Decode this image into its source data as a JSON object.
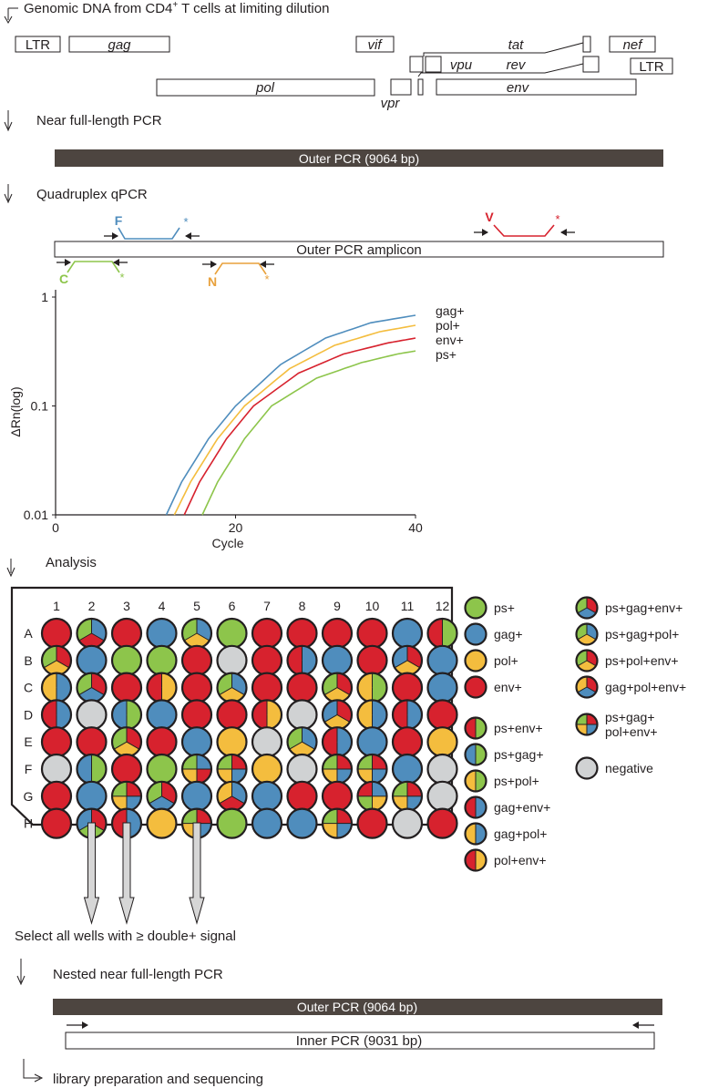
{
  "colors": {
    "ps": "#8dc54b",
    "gag": "#4f8dbd",
    "pol": "#f4bd3e",
    "env": "#d7222e",
    "negative": "#d0d2d3",
    "bar": "#4d4540"
  },
  "steps": {
    "s1": "Genomic DNA from CD4",
    "s1_sup": "+",
    "s1_tail": " T cells at limiting dilution",
    "s2": "Near full-length PCR",
    "s3": "Quadruplex qPCR",
    "s4": "Analysis",
    "s5": "Select all wells with ≥ double+ signal",
    "s6": "Nested near full-length PCR",
    "s7": "library preparation and sequencing"
  },
  "genome": {
    "ltr5": "LTR",
    "gag": "gag",
    "vif": "vif",
    "tat": "tat",
    "nef": "nef",
    "vpu": "vpu",
    "rev": "rev",
    "ltr3": "LTR",
    "pol": "pol",
    "vpr": "vpr",
    "env": "env"
  },
  "bars": {
    "outer": "Outer PCR (9064 bp)",
    "amplicon": "Outer PCR amplicon",
    "outer2": "Outer PCR (9064 bp)",
    "inner": "Inner PCR (9031 bp)"
  },
  "probes": {
    "F": "F",
    "V": "V",
    "C": "C",
    "N": "N",
    "star": "*"
  },
  "qpcr_plot": {
    "type": "line",
    "xlabel": "Cycle",
    "ylabel": "ΔRn(log)",
    "xlim": [
      0,
      40
    ],
    "ylim": [
      0.01,
      1
    ],
    "yscale": "log",
    "xticks": [
      "0",
      "20",
      "40"
    ],
    "yticks": [
      "0.01",
      "0.1",
      "1"
    ],
    "series": [
      {
        "name": "gag+",
        "color": "#4f8dbd",
        "x": [
          12.3,
          14,
          17,
          20,
          25,
          30,
          35,
          40
        ],
        "y": [
          0.01,
          0.02,
          0.05,
          0.1,
          0.24,
          0.42,
          0.58,
          0.68
        ]
      },
      {
        "name": "pol+",
        "color": "#f4bd3e",
        "x": [
          13.2,
          15,
          18,
          21,
          26,
          31,
          36,
          40
        ],
        "y": [
          0.01,
          0.02,
          0.05,
          0.1,
          0.22,
          0.36,
          0.48,
          0.55
        ]
      },
      {
        "name": "env+",
        "color": "#d7222e",
        "x": [
          14.3,
          16,
          19,
          22,
          27,
          32,
          37,
          40
        ],
        "y": [
          0.01,
          0.02,
          0.05,
          0.1,
          0.2,
          0.3,
          0.38,
          0.42
        ]
      },
      {
        "name": "ps+",
        "color": "#8dc54b",
        "x": [
          16.3,
          18,
          21,
          24,
          29,
          34,
          38,
          40
        ],
        "y": [
          0.01,
          0.02,
          0.05,
          0.1,
          0.18,
          0.25,
          0.3,
          0.32
        ]
      }
    ]
  },
  "plate": {
    "columns": [
      "1",
      "2",
      "3",
      "4",
      "5",
      "6",
      "7",
      "8",
      "9",
      "10",
      "11",
      "12"
    ],
    "rows": [
      "A",
      "B",
      "C",
      "D",
      "E",
      "F",
      "G",
      "H"
    ],
    "wells": {
      "A": [
        "env",
        "gag|env|ps",
        "env",
        "gag",
        "gag|pol|ps",
        "ps",
        "env",
        "env",
        "env",
        "env",
        "gag",
        "ps|env"
      ],
      "B": [
        "env|pol|ps",
        "gag",
        "ps",
        "ps",
        "env",
        "negative",
        "env",
        "gag|env",
        "gag",
        "env",
        "env|pol|gag",
        "gag"
      ],
      "C": [
        "gag|pol",
        "env|gag|ps",
        "env",
        "pol|env",
        "env",
        "gag|pol|ps",
        "env",
        "env",
        "env|pol|ps",
        "ps|pol",
        "env",
        "gag"
      ],
      "D": [
        "gag|env",
        "negative",
        "ps|gag",
        "gag",
        "env",
        "env",
        "pol|env",
        "negative",
        "env|pol|gag",
        "gag|pol",
        "gag|env",
        "env"
      ],
      "E": [
        "env",
        "env",
        "env|pol|ps",
        "env",
        "gag",
        "pol",
        "negative",
        "gag|pol|ps",
        "gag|env",
        "gag",
        "env",
        "pol"
      ],
      "F": [
        "negative",
        "ps|gag",
        "env",
        "ps",
        "gag|env|pol|ps",
        "env|gag|pol|ps",
        "pol",
        "negative",
        "env|gag|pol|ps",
        "env|gag|pol|ps",
        "gag",
        "negative"
      ],
      "G": [
        "env",
        "gag",
        "env|gag|pol|ps",
        "env|gag|ps",
        "gag",
        "gag|env|pol",
        "gag",
        "env",
        "env",
        "gag|pol|ps|env",
        "env|gag|pol|ps",
        "negative"
      ],
      "H": [
        "env",
        "env|ps|gag",
        "gag|env",
        "pol",
        "env|gag|pol|ps",
        "ps",
        "gag",
        "gag",
        "env|gag|pol|ps",
        "env",
        "negative",
        "env"
      ]
    }
  },
  "legend": {
    "single": [
      {
        "key": "ps",
        "label": "ps+"
      },
      {
        "key": "gag",
        "label": "gag+"
      },
      {
        "key": "pol",
        "label": "pol+"
      },
      {
        "key": "env",
        "label": "env+"
      }
    ],
    "double": [
      {
        "key": "ps|env",
        "label": "ps+env+"
      },
      {
        "key": "ps|gag",
        "label": "ps+gag+"
      },
      {
        "key": "ps|pol",
        "label": "ps+pol+"
      },
      {
        "key": "gag|env",
        "label": "gag+env+"
      },
      {
        "key": "gag|pol",
        "label": "gag+pol+"
      },
      {
        "key": "pol|env",
        "label": "pol+env+"
      }
    ],
    "triple": [
      {
        "key": "env|gag|ps",
        "label": "ps+gag+env+"
      },
      {
        "key": "gag|pol|ps",
        "label": "ps+gag+pol+"
      },
      {
        "key": "env|pol|ps",
        "label": "ps+pol+env+"
      },
      {
        "key": "env|gag|pol",
        "label": "gag+pol+env+"
      }
    ],
    "quad": {
      "key": "env|gag|pol|ps",
      "label1": "ps+gag+",
      "label2": "pol+env+"
    },
    "negative": {
      "key": "negative",
      "label": "negative"
    }
  }
}
